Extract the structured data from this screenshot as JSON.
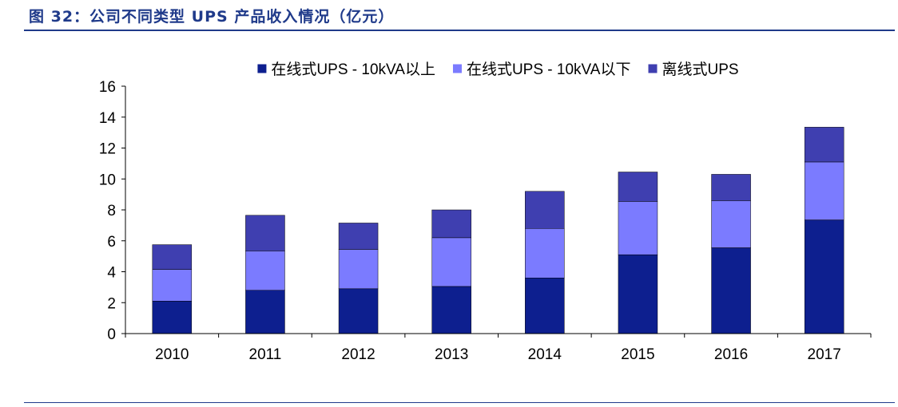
{
  "figure": {
    "title": "图 32：公司不同类型 UPS 产品收入情况（亿元）"
  },
  "chart_data": {
    "type": "bar",
    "stacked": true,
    "categories": [
      "2010",
      "2011",
      "2012",
      "2013",
      "2014",
      "2015",
      "2016",
      "2017"
    ],
    "series": [
      {
        "name": "在线式UPS - 10kVA以上",
        "color": "#0d1f8f",
        "values": [
          2.1,
          2.8,
          2.9,
          3.05,
          3.6,
          5.1,
          5.55,
          7.35
        ]
      },
      {
        "name": "在线式UPS - 10kVA以下",
        "color": "#7b7bff",
        "values": [
          2.05,
          2.55,
          2.55,
          3.15,
          3.2,
          3.45,
          3.05,
          3.75
        ]
      },
      {
        "name": "离线式UPS",
        "color": "#3f3fb0",
        "values": [
          1.6,
          2.3,
          1.7,
          1.8,
          2.4,
          1.9,
          1.7,
          2.25
        ]
      }
    ],
    "ylim": [
      0,
      16
    ],
    "yticks": [
      0,
      2,
      4,
      6,
      8,
      10,
      12,
      14,
      16
    ],
    "grid": false,
    "legend": "top"
  }
}
